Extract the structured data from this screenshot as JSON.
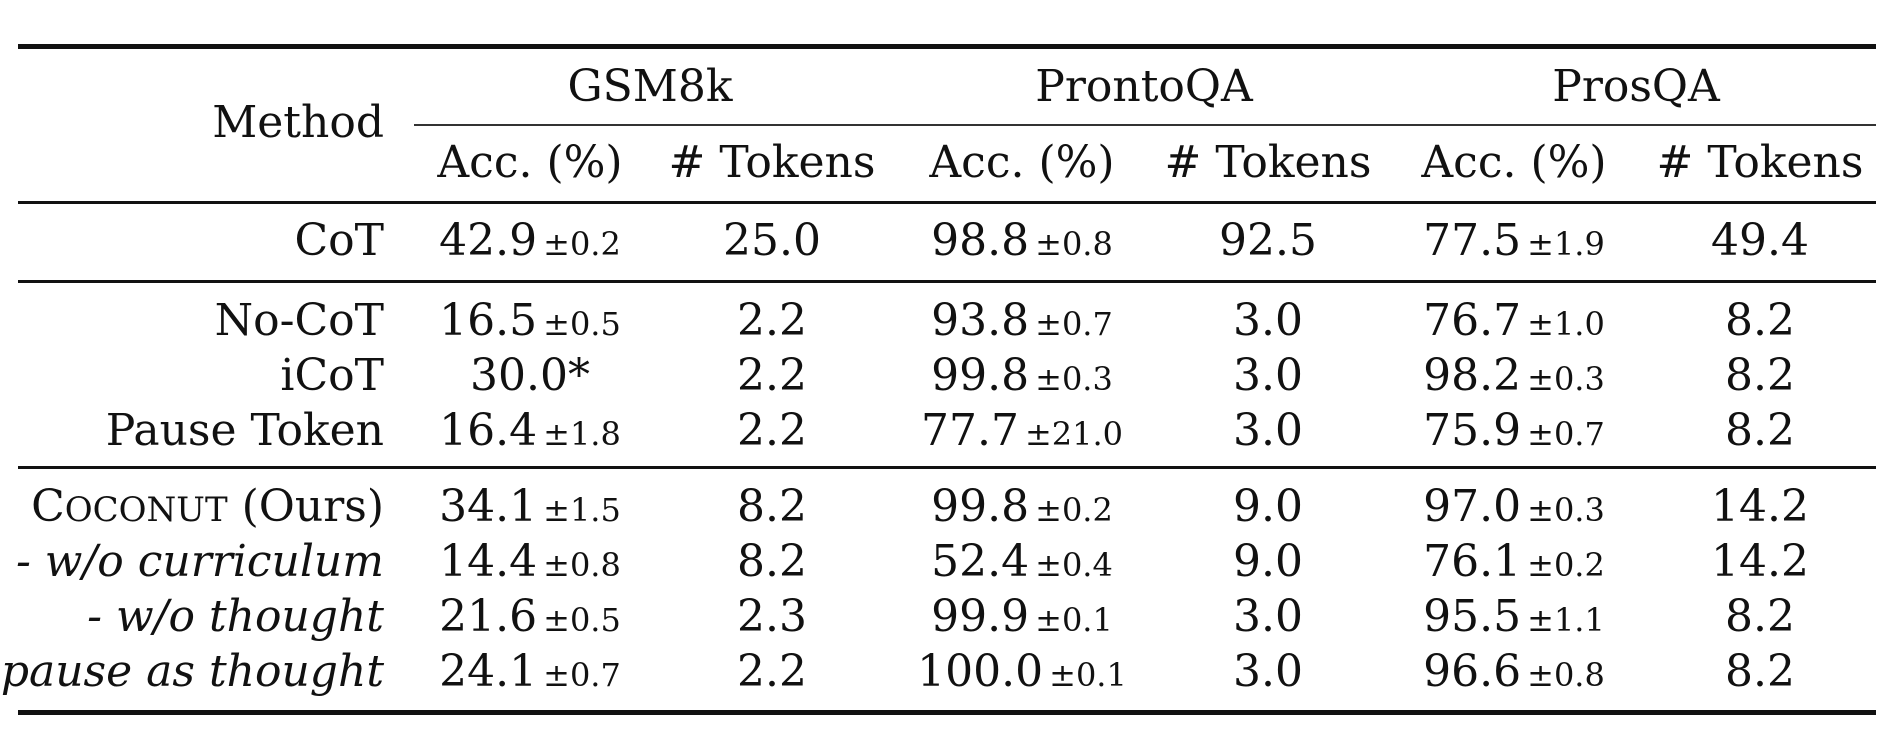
{
  "table": {
    "method_header": "Method",
    "datasets": [
      "GSM8k",
      "ProntoQA",
      "ProsQA"
    ],
    "subheaders": [
      "Acc. (%)",
      "# Tokens",
      "Acc. (%)",
      "# Tokens",
      "Acc. (%)",
      "# Tokens"
    ],
    "rows": [
      {
        "method": "CoT",
        "style": "normal",
        "cells": [
          {
            "v": "42.9",
            "s": "±0.2"
          },
          {
            "v": "25.0",
            "s": ""
          },
          {
            "v": "98.8",
            "s": "±0.8"
          },
          {
            "v": "92.5",
            "s": ""
          },
          {
            "v": "77.5",
            "s": "±1.9"
          },
          {
            "v": "49.4",
            "s": ""
          }
        ]
      },
      {
        "method": "No-CoT",
        "style": "normal",
        "cells": [
          {
            "v": "16.5",
            "s": "±0.5"
          },
          {
            "v": "2.2",
            "s": ""
          },
          {
            "v": "93.8",
            "s": "±0.7"
          },
          {
            "v": "3.0",
            "s": ""
          },
          {
            "v": "76.7",
            "s": "±1.0"
          },
          {
            "v": "8.2",
            "s": ""
          }
        ]
      },
      {
        "method": "iCoT",
        "style": "normal",
        "cells": [
          {
            "v": "30.0*",
            "s": ""
          },
          {
            "v": "2.2",
            "s": ""
          },
          {
            "v": "99.8",
            "s": "±0.3"
          },
          {
            "v": "3.0",
            "s": ""
          },
          {
            "v": "98.2",
            "s": "±0.3"
          },
          {
            "v": "8.2",
            "s": ""
          }
        ]
      },
      {
        "method": "Pause Token",
        "style": "normal",
        "cells": [
          {
            "v": "16.4",
            "s": "±1.8"
          },
          {
            "v": "2.2",
            "s": ""
          },
          {
            "v": "77.7",
            "s": "±21.0"
          },
          {
            "v": "3.0",
            "s": ""
          },
          {
            "v": "75.9",
            "s": "±0.7"
          },
          {
            "v": "8.2",
            "s": ""
          }
        ]
      },
      {
        "method": "Coconut",
        "method_suffix": " (Ours)",
        "style": "smallcaps",
        "cells": [
          {
            "v": "34.1",
            "s": "±1.5"
          },
          {
            "v": "8.2",
            "s": ""
          },
          {
            "v": "99.8",
            "s": "±0.2"
          },
          {
            "v": "9.0",
            "s": ""
          },
          {
            "v": "97.0",
            "s": "±0.3"
          },
          {
            "v": "14.2",
            "s": ""
          }
        ]
      },
      {
        "method": "- w/o curriculum",
        "style": "italic",
        "cells": [
          {
            "v": "14.4",
            "s": "±0.8"
          },
          {
            "v": "8.2",
            "s": ""
          },
          {
            "v": "52.4",
            "s": "±0.4"
          },
          {
            "v": "9.0",
            "s": ""
          },
          {
            "v": "76.1",
            "s": "±0.2"
          },
          {
            "v": "14.2",
            "s": ""
          }
        ]
      },
      {
        "method": "- w/o thought",
        "style": "italic",
        "cells": [
          {
            "v": "21.6",
            "s": "±0.5"
          },
          {
            "v": "2.3",
            "s": ""
          },
          {
            "v": "99.9",
            "s": "±0.1"
          },
          {
            "v": "3.0",
            "s": ""
          },
          {
            "v": "95.5",
            "s": "±1.1"
          },
          {
            "v": "8.2",
            "s": ""
          }
        ]
      },
      {
        "method": "- pause as thought",
        "style": "italic",
        "cells": [
          {
            "v": "24.1",
            "s": "±0.7"
          },
          {
            "v": "2.2",
            "s": ""
          },
          {
            "v": "100.0",
            "s": "±0.1"
          },
          {
            "v": "3.0",
            "s": ""
          },
          {
            "v": "96.6",
            "s": "±0.8"
          },
          {
            "v": "8.2",
            "s": ""
          }
        ]
      }
    ]
  }
}
